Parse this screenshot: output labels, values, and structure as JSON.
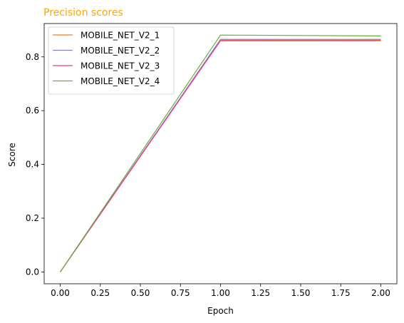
{
  "chart_data": {
    "type": "line",
    "title": "Precision scores",
    "title_color": "#ffa500",
    "xlabel": "Epoch",
    "ylabel": "Score",
    "x": [
      0,
      1,
      2
    ],
    "xlim": [
      -0.1,
      2.1
    ],
    "ylim": [
      -0.044,
      0.924
    ],
    "xticks": [
      0.0,
      0.25,
      0.5,
      0.75,
      1.0,
      1.25,
      1.5,
      1.75,
      2.0
    ],
    "xtick_labels": [
      "0.00",
      "0.25",
      "0.50",
      "0.75",
      "1.00",
      "1.25",
      "1.50",
      "1.75",
      "2.00"
    ],
    "yticks": [
      0.0,
      0.2,
      0.4,
      0.6,
      0.8
    ],
    "ytick_labels": [
      "0.0",
      "0.2",
      "0.4",
      "0.6",
      "0.8"
    ],
    "grid": false,
    "legend_position": "top-left",
    "series": [
      {
        "name": "MOBILE_NET_V2_1",
        "color": "#f57f20",
        "values": [
          0.0,
          0.862,
          0.862
        ]
      },
      {
        "name": "MOBILE_NET_V2_2",
        "color": "#8c7fbd",
        "values": [
          0.0,
          0.865,
          0.865
        ]
      },
      {
        "name": "MOBILE_NET_V2_3",
        "color": "#e8389a",
        "values": [
          0.0,
          0.86,
          0.86
        ]
      },
      {
        "name": "MOBILE_NET_V2_4",
        "color": "#66b032",
        "values": [
          0.0,
          0.881,
          0.878
        ]
      }
    ]
  }
}
